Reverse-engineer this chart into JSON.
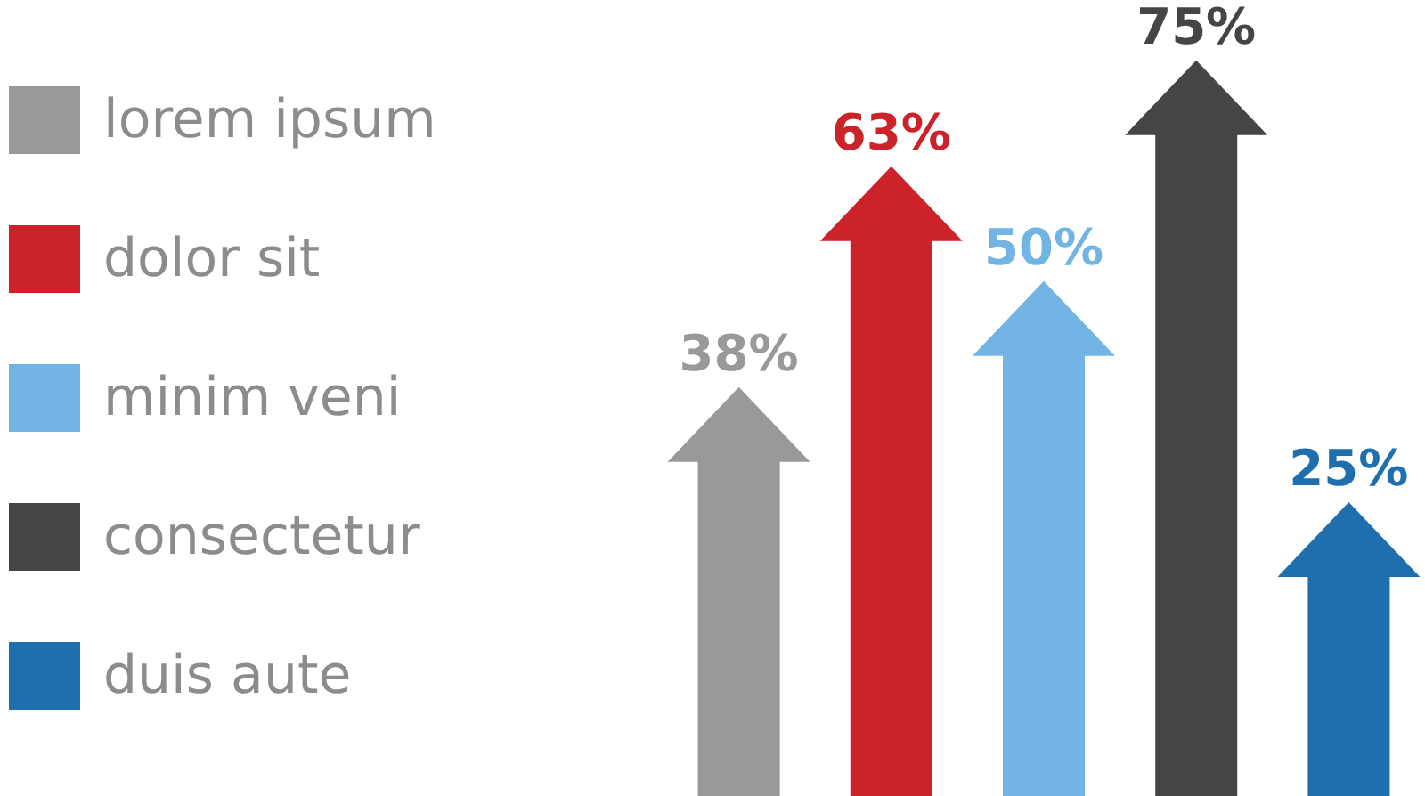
{
  "chart_data": {
    "type": "bar",
    "stacked": true,
    "categories": [
      null,
      null,
      null,
      null,
      null
    ],
    "series": [
      {
        "name": "lorem ipsum",
        "color": "#999999",
        "values": [
          38,
          null,
          null,
          null,
          null
        ],
        "value_labels": [
          "38%",
          null,
          null,
          null,
          null
        ]
      },
      {
        "name": "dolor sit",
        "color": "#cc2229",
        "values": [
          null,
          63,
          null,
          null,
          null
        ],
        "value_labels": [
          null,
          "63%",
          null,
          null,
          null
        ]
      },
      {
        "name": "minim veni",
        "color": "#72b4e4",
        "values": [
          null,
          null,
          50,
          null,
          null
        ],
        "value_labels": [
          null,
          null,
          "50%",
          null,
          null
        ]
      },
      {
        "name": "consectetur",
        "color": "#454545",
        "values": [
          null,
          null,
          null,
          75,
          null
        ],
        "value_labels": [
          null,
          null,
          null,
          "75%",
          null
        ]
      },
      {
        "name": "duis aute",
        "color": "#1f6eae",
        "values": [
          null,
          null,
          null,
          null,
          25
        ],
        "value_labels": [
          null,
          null,
          null,
          null,
          "25%"
        ]
      }
    ],
    "legend": "left",
    "grid": false,
    "tick_labels": false
  }
}
